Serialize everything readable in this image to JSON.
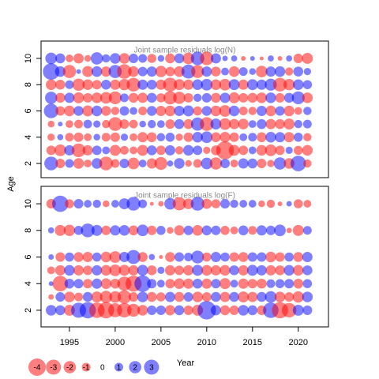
{
  "chart_data": [
    {
      "type": "bubble",
      "title": "Joint sample residuals log(N)",
      "ylabel": "Age",
      "x": [
        1993,
        1994,
        1995,
        1996,
        1997,
        1998,
        1999,
        2000,
        2001,
        2002,
        2003,
        2004,
        2005,
        2006,
        2007,
        2008,
        2009,
        2010,
        2011,
        2012,
        2013,
        2014,
        2015,
        2016,
        2017,
        2018,
        2019,
        2020,
        2021
      ],
      "y": [
        2,
        3,
        4,
        5,
        6,
        7,
        8,
        9,
        10
      ],
      "values": [
        [
          2.5,
          -1.2,
          1,
          -1.5,
          -0.8,
          1.5,
          -2.5,
          -1,
          1.2,
          -1.8,
          0.8,
          -1.4,
          -2.2,
          0.5,
          1.5,
          -0.6,
          -1,
          1.8,
          -2,
          1.2,
          -0.8,
          1.4,
          1.3,
          -1.2,
          -0.7,
          2,
          -1.5,
          3.2,
          -0.9
        ],
        [
          -1.2,
          -1.8,
          1.4,
          -2.5,
          -1.4,
          1.2,
          0.8,
          -1.6,
          -1,
          -0.8,
          -1.6,
          1.3,
          -1.2,
          1.4,
          -0.9,
          1.5,
          1.2,
          -0.7,
          -1.3,
          -4.2,
          -1.6,
          -1.2,
          0.8,
          -1.5,
          -1.8,
          -1.2,
          0.7,
          -1.1,
          -1.5
        ],
        [
          -0.7,
          0.5,
          -1,
          -1.2,
          -0.8,
          0.6,
          -1,
          -1.2,
          0.7,
          -0.8,
          -1.4,
          -1.3,
          0.9,
          1.1,
          -0.7,
          -1.2,
          1.5,
          1.8,
          -1.3,
          -1.5,
          -1.2,
          0.8,
          1,
          -1.3,
          1.5,
          1.4,
          -1.4,
          1.1,
          -0.9
        ],
        [
          -0.6,
          0.3,
          -0.8,
          -1,
          1,
          0.7,
          -0.9,
          -2.5,
          -1.2,
          -1,
          0.6,
          0.9,
          0.8,
          -1.2,
          1.3,
          -1.3,
          2.3,
          -2.5,
          1.6,
          -1.8,
          -1.4,
          -1.5,
          0.8,
          1.3,
          -1.4,
          -1.3,
          -1.6,
          0.9,
          1
        ],
        [
          2.8,
          -1.2,
          -1.5,
          1.3,
          -1.6,
          1.5,
          -1.3,
          -0.9,
          1.2,
          0.8,
          -1,
          1.3,
          -1.4,
          -1.5,
          1.4,
          1.6,
          -1.1,
          1.3,
          -1.5,
          -1.8,
          1.5,
          -1,
          -0.9,
          1.4,
          -1.5,
          1.2,
          -1.5,
          -0.8,
          0.9
        ],
        [
          2,
          -1.3,
          1.4,
          -1.6,
          -1.2,
          -1.5,
          -1.8,
          -2.2,
          1,
          -1.3,
          -1.4,
          1.3,
          -1.1,
          -2.3,
          -2,
          -1.2,
          0.9,
          1.2,
          -1.3,
          1.4,
          -1.6,
          -1.2,
          -1.3,
          -1.5,
          1.5,
          -1.2,
          1.3,
          2.2,
          -1.5
        ],
        [
          -1.5,
          -1.3,
          1,
          -2,
          -1.5,
          -1.2,
          1.3,
          -1.4,
          -1.7,
          -2.5,
          1.4,
          1.3,
          -1.4,
          -2.6,
          -1.6,
          -1.4,
          1.5,
          1.8,
          -1.5,
          -1.8,
          1.6,
          -1.4,
          1.6,
          1.4,
          1.9,
          -2.5,
          -1.7,
          1.5,
          1.1
        ],
        [
          3.6,
          1.5,
          -2.3,
          0.3,
          -1.6,
          1.5,
          -1.4,
          2.3,
          -2.8,
          -1.5,
          1.2,
          1.4,
          -1.7,
          -1.2,
          -1.5,
          2.6,
          -2.2,
          1.4,
          -1.3,
          0.8,
          -1.5,
          1,
          0.6,
          -1.8,
          1.4,
          1.5,
          -0.9,
          1.3,
          0.7
        ],
        [
          1.8,
          1.3,
          -0.8,
          -1.4,
          -0.6,
          2,
          0.9,
          1.5,
          -1.5,
          1.2,
          1,
          -1.1,
          0.6,
          -1.3,
          1.3,
          -1.8,
          2.4,
          -2.4,
          1.4,
          0.4,
          0.5,
          -0.3,
          0.3,
          -0.2,
          0.5,
          -0.3,
          0.5,
          -1.2,
          -1.6
        ]
      ],
      "xlim": [
        1991.9,
        2023.3
      ],
      "ylim": [
        0.92,
        11.32
      ],
      "yticks": [
        2,
        4,
        6,
        8,
        10
      ],
      "negative_color": "#ff0000",
      "positive_color": "#0000ff"
    },
    {
      "type": "bubble",
      "title": "Joint sample residuals log(F)",
      "xlabel": "Year",
      "x": [
        1993,
        1994,
        1995,
        1996,
        1997,
        1998,
        1999,
        2000,
        2001,
        2002,
        2003,
        2004,
        2005,
        2006,
        2007,
        2008,
        2009,
        2010,
        2011,
        2012,
        2013,
        2014,
        2015,
        2016,
        2017,
        2018,
        2019,
        2020,
        2021
      ],
      "y": [
        2,
        3,
        4,
        5,
        6,
        8,
        10
      ],
      "values": [
        [
          1.5,
          1.3,
          -1.6,
          3,
          3.5,
          -3.2,
          -3.5,
          -2.6,
          -2.8,
          -2.2,
          -1.5,
          1.2,
          1.2,
          -1.4,
          1.3,
          -1.2,
          -1.6,
          4.5,
          1.4,
          -1.3,
          -1.2,
          1.5,
          1.3,
          -1.2,
          3.2,
          -3.5,
          -2.8,
          1.6,
          1.2
        ],
        [
          -0.4,
          1.2,
          -1.5,
          -1,
          1.3,
          -1.6,
          -2,
          -1.8,
          -2.4,
          -1.2,
          1.5,
          -1.3,
          -1.1,
          1.4,
          -1.3,
          1.2,
          -1.5,
          -1.2,
          1.3,
          -1.4,
          1.3,
          -1.6,
          -1.4,
          1.3,
          1.8,
          -1.5,
          -1.2,
          -1.7,
          1.5
        ],
        [
          0.3,
          -3.2,
          1.3,
          1.2,
          -1.2,
          1.4,
          -1.5,
          -1.3,
          -2.6,
          -3.4,
          3.6,
          1.2,
          0.8,
          -1.2,
          -1.5,
          -1.4,
          1.3,
          -1.4,
          1.2,
          -1.6,
          0.8,
          -1.4,
          -1.2,
          -1.3,
          1,
          1.1,
          1.2,
          -1.3,
          1.1
        ],
        [
          -0.8,
          -1.4,
          1.5,
          -1.4,
          -1.2,
          1.4,
          -1.5,
          -1.8,
          -1.6,
          -1.4,
          1.6,
          -1.3,
          0.7,
          -1.4,
          -1.2,
          -1.4,
          1.6,
          -1.5,
          -1.4,
          -1.5,
          1.3,
          -1.4,
          1.6,
          1.4,
          -1.4,
          -1.3,
          1.5,
          -1.5,
          1.3
        ],
        [
          0.4,
          -1.2,
          1.1,
          -1.3,
          -1.4,
          1.1,
          -1.5,
          -1.8,
          1.4,
          2.6,
          -1.3,
          0.5,
          -0.2,
          -1.3,
          1.2,
          1,
          2.2,
          -1.1,
          1.4,
          1.1,
          -1.2,
          -1.3,
          1.2,
          1.2,
          -1.5,
          -1.2,
          1.1,
          -1.3,
          1.4
        ],
        [
          0.5,
          -1.6,
          -1.7,
          1.1,
          2.5,
          1.6,
          -1.2,
          1.4,
          1.5,
          -1.3,
          1.8,
          -1.2,
          1.1,
          -0.6,
          -1.4,
          1.2,
          -1.5,
          1.3,
          1.2,
          -1.1,
          -0.8,
          1.3,
          -1,
          1.4,
          1.2,
          1.8,
          -0.4,
          -1.6,
          1
        ],
        [
          -1.2,
          3.5,
          -1.1,
          1.2,
          0.8,
          0.9,
          -0.6,
          0.8,
          1.6,
          2.5,
          1,
          -0.2,
          -0.4,
          1.8,
          -2.3,
          -1.5,
          2.5,
          -1.4,
          -1.1,
          1.2,
          0.9,
          0.8,
          0.8,
          -0.6,
          -0.9,
          -0.3,
          0.4,
          -1.1,
          -0.8
        ]
      ],
      "xlim": [
        1991.9,
        2023.3
      ],
      "ylim": [
        0.75,
        11.31
      ],
      "yticks": [
        2,
        4,
        6,
        8,
        10
      ],
      "xticks": [
        1995,
        2000,
        2005,
        2010,
        2015,
        2020
      ],
      "size_legend": [
        -4,
        -3,
        -2,
        -1,
        0,
        1,
        2,
        3
      ],
      "negative_color": "#ff0000",
      "positive_color": "#0000ff"
    }
  ]
}
